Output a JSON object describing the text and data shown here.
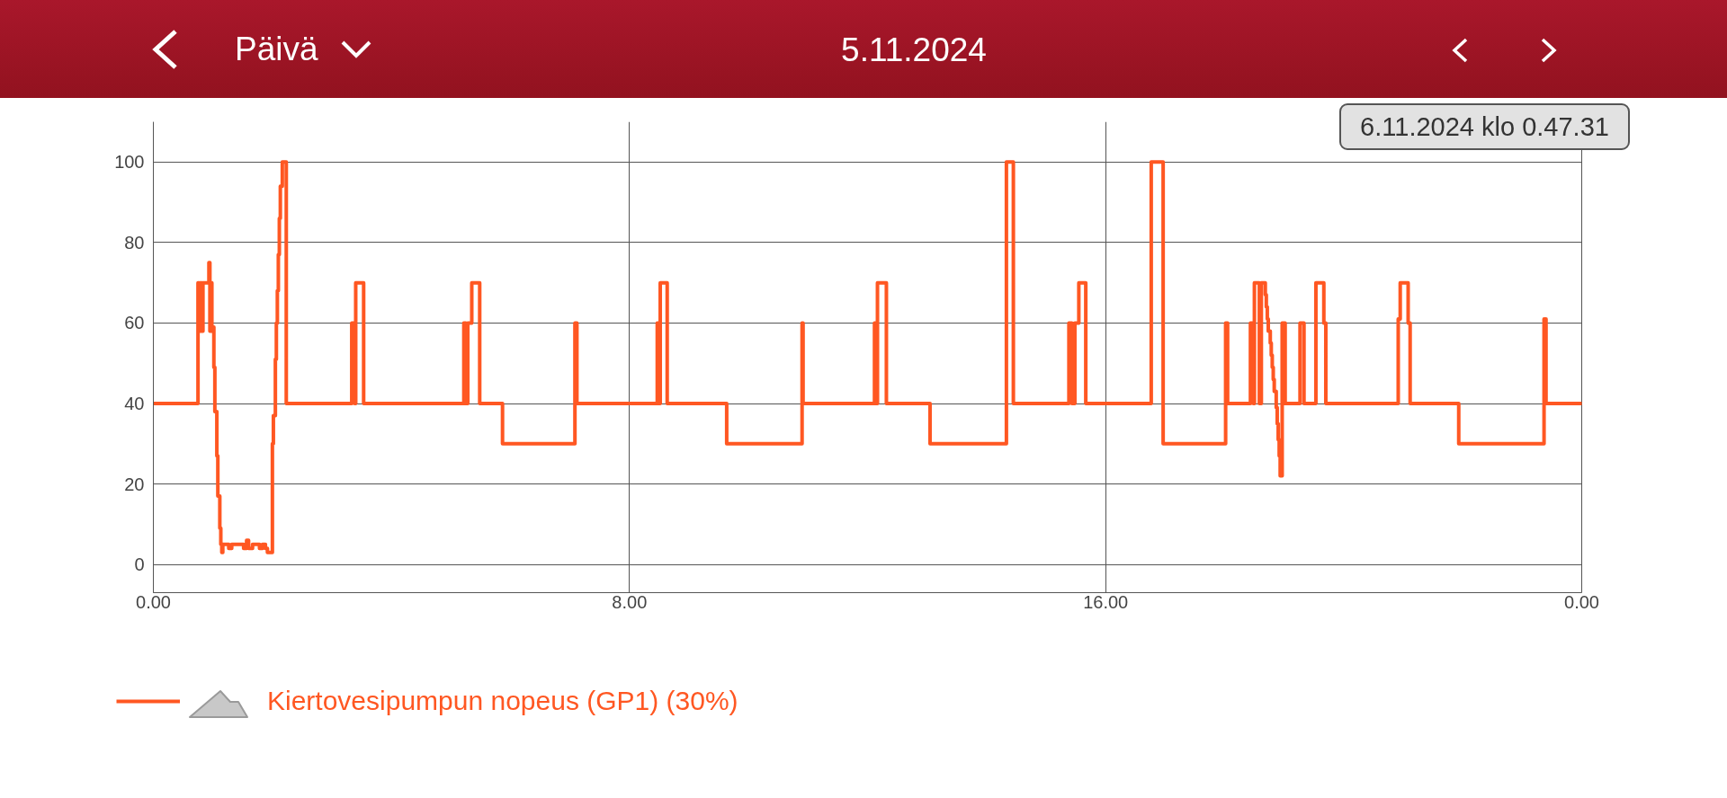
{
  "chart_data": {
    "type": "step",
    "title": "5.11.2024",
    "annotations": [
      "Päivä",
      "6.11.2024 klo 0.47.31"
    ],
    "x": [
      "2024-11-05T00:00",
      "2024-11-05T00:45",
      "2024-11-05T00:46",
      "2024-11-05T00:47",
      "2024-11-05T00:49",
      "2024-11-05T00:50",
      "2024-11-05T00:56",
      "2024-11-05T00:57",
      "2024-11-05T00:58",
      "2024-11-05T00:59",
      "2024-11-05T01:01",
      "2024-11-05T01:02",
      "2024-11-05T01:04",
      "2024-11-05T01:05",
      "2024-11-05T01:07",
      "2024-11-05T01:08",
      "2024-11-05T01:09",
      "2024-11-05T01:10",
      "2024-11-05T01:16",
      "2024-11-05T01:19",
      "2024-11-05T01:31",
      "2024-11-05T01:34",
      "2024-11-05T01:36",
      "2024-11-05T01:40",
      "2024-11-05T01:47",
      "2024-11-05T01:50",
      "2024-11-05T01:53",
      "2024-11-05T01:55",
      "2024-11-05T02:00",
      "2024-11-05T02:01",
      "2024-11-05T02:03",
      "2024-11-05T02:04",
      "2024-11-05T02:05",
      "2024-11-05T02:06",
      "2024-11-05T02:07",
      "2024-11-05T02:08",
      "2024-11-05T02:10",
      "2024-11-05T02:14",
      "2024-11-05T03:20",
      "2024-11-05T03:23",
      "2024-11-05T03:24",
      "2024-11-05T03:32",
      "2024-11-05T05:13",
      "2024-11-05T05:15",
      "2024-11-05T05:17",
      "2024-11-05T05:21",
      "2024-11-05T05:29",
      "2024-11-05T05:52",
      "2024-11-05T07:05",
      "2024-11-05T07:07",
      "2024-11-05T08:28",
      "2024-11-05T08:30",
      "2024-11-05T08:31",
      "2024-11-05T08:38",
      "2024-11-05T09:38",
      "2024-11-05T10:54",
      "2024-11-05T10:55",
      "2024-11-05T12:07",
      "2024-11-05T12:09",
      "2024-11-05T12:10",
      "2024-11-05T12:19",
      "2024-11-05T13:03",
      "2024-11-05T14:20",
      "2024-11-05T14:27",
      "2024-11-05T15:23",
      "2024-11-05T15:26",
      "2024-11-05T15:29",
      "2024-11-05T15:33",
      "2024-11-05T15:40",
      "2024-11-05T16:46",
      "2024-11-05T16:58",
      "2024-11-05T18:01",
      "2024-11-05T18:03",
      "2024-11-05T18:26",
      "2024-11-05T18:29",
      "2024-11-05T18:30",
      "2024-11-05T18:35",
      "2024-11-05T18:37",
      "2024-11-05T18:41",
      "2024-11-05T18:42",
      "2024-11-05T18:43",
      "2024-11-05T18:44",
      "2024-11-05T18:46",
      "2024-11-05T18:47",
      "2024-11-05T18:48",
      "2024-11-05T18:49",
      "2024-11-05T18:50",
      "2024-11-05T18:52",
      "2024-11-05T18:53",
      "2024-11-05T18:54",
      "2024-11-05T18:55",
      "2024-11-05T18:56",
      "2024-11-05T18:58",
      "2024-11-05T19:01",
      "2024-11-05T19:16",
      "2024-11-05T19:20",
      "2024-11-05T19:32",
      "2024-11-05T19:40",
      "2024-11-05T19:42",
      "2024-11-05T20:55",
      "2024-11-05T20:57",
      "2024-11-05T21:05",
      "2024-11-05T21:07",
      "2024-11-05T21:56",
      "2024-11-05T23:22",
      "2024-11-05T23:24",
      "2024-11-06T00:00"
    ],
    "series": [
      {
        "name": "Kiertovesipumpun nopeus (GP1) (30%)",
        "color": "#ff5722",
        "values": [
          40,
          70,
          58,
          70,
          58,
          70,
          75,
          58,
          70,
          59,
          49,
          38,
          27,
          17,
          9,
          5,
          3,
          5,
          4,
          5,
          4,
          6,
          4,
          5,
          4,
          5,
          4,
          3,
          30,
          37,
          51,
          60,
          68,
          77,
          86,
          94,
          100,
          40,
          60,
          40,
          70,
          40,
          60,
          40,
          60,
          70,
          40,
          30,
          60,
          40,
          60,
          40,
          70,
          40,
          30,
          60,
          40,
          60,
          40,
          70,
          40,
          30,
          100,
          40,
          60,
          40,
          60,
          70,
          40,
          100,
          30,
          60,
          40,
          60,
          40,
          70,
          40,
          70,
          67,
          64,
          61,
          58,
          55,
          52,
          49,
          46,
          43,
          39,
          35,
          31,
          27,
          22,
          60,
          40,
          60,
          40,
          70,
          60,
          40,
          61,
          70,
          60,
          40,
          30,
          61,
          40,
          40
        ]
      }
    ],
    "xlim": [
      "2024-11-05T00:00",
      "2024-11-06T00:00"
    ],
    "xticks": [
      {
        "value": "2024-11-05T00:00",
        "label": "0.00"
      },
      {
        "value": "2024-11-05T08:00",
        "label": "8.00"
      },
      {
        "value": "2024-11-05T16:00",
        "label": "16.00"
      },
      {
        "value": "2024-11-06T00:00",
        "label": "0.00"
      }
    ],
    "ylim": [
      -7,
      110
    ],
    "yticks": [
      0,
      20,
      40,
      60,
      80,
      100
    ],
    "grid": true,
    "legend": "bottom left",
    "line_style": "solid"
  }
}
